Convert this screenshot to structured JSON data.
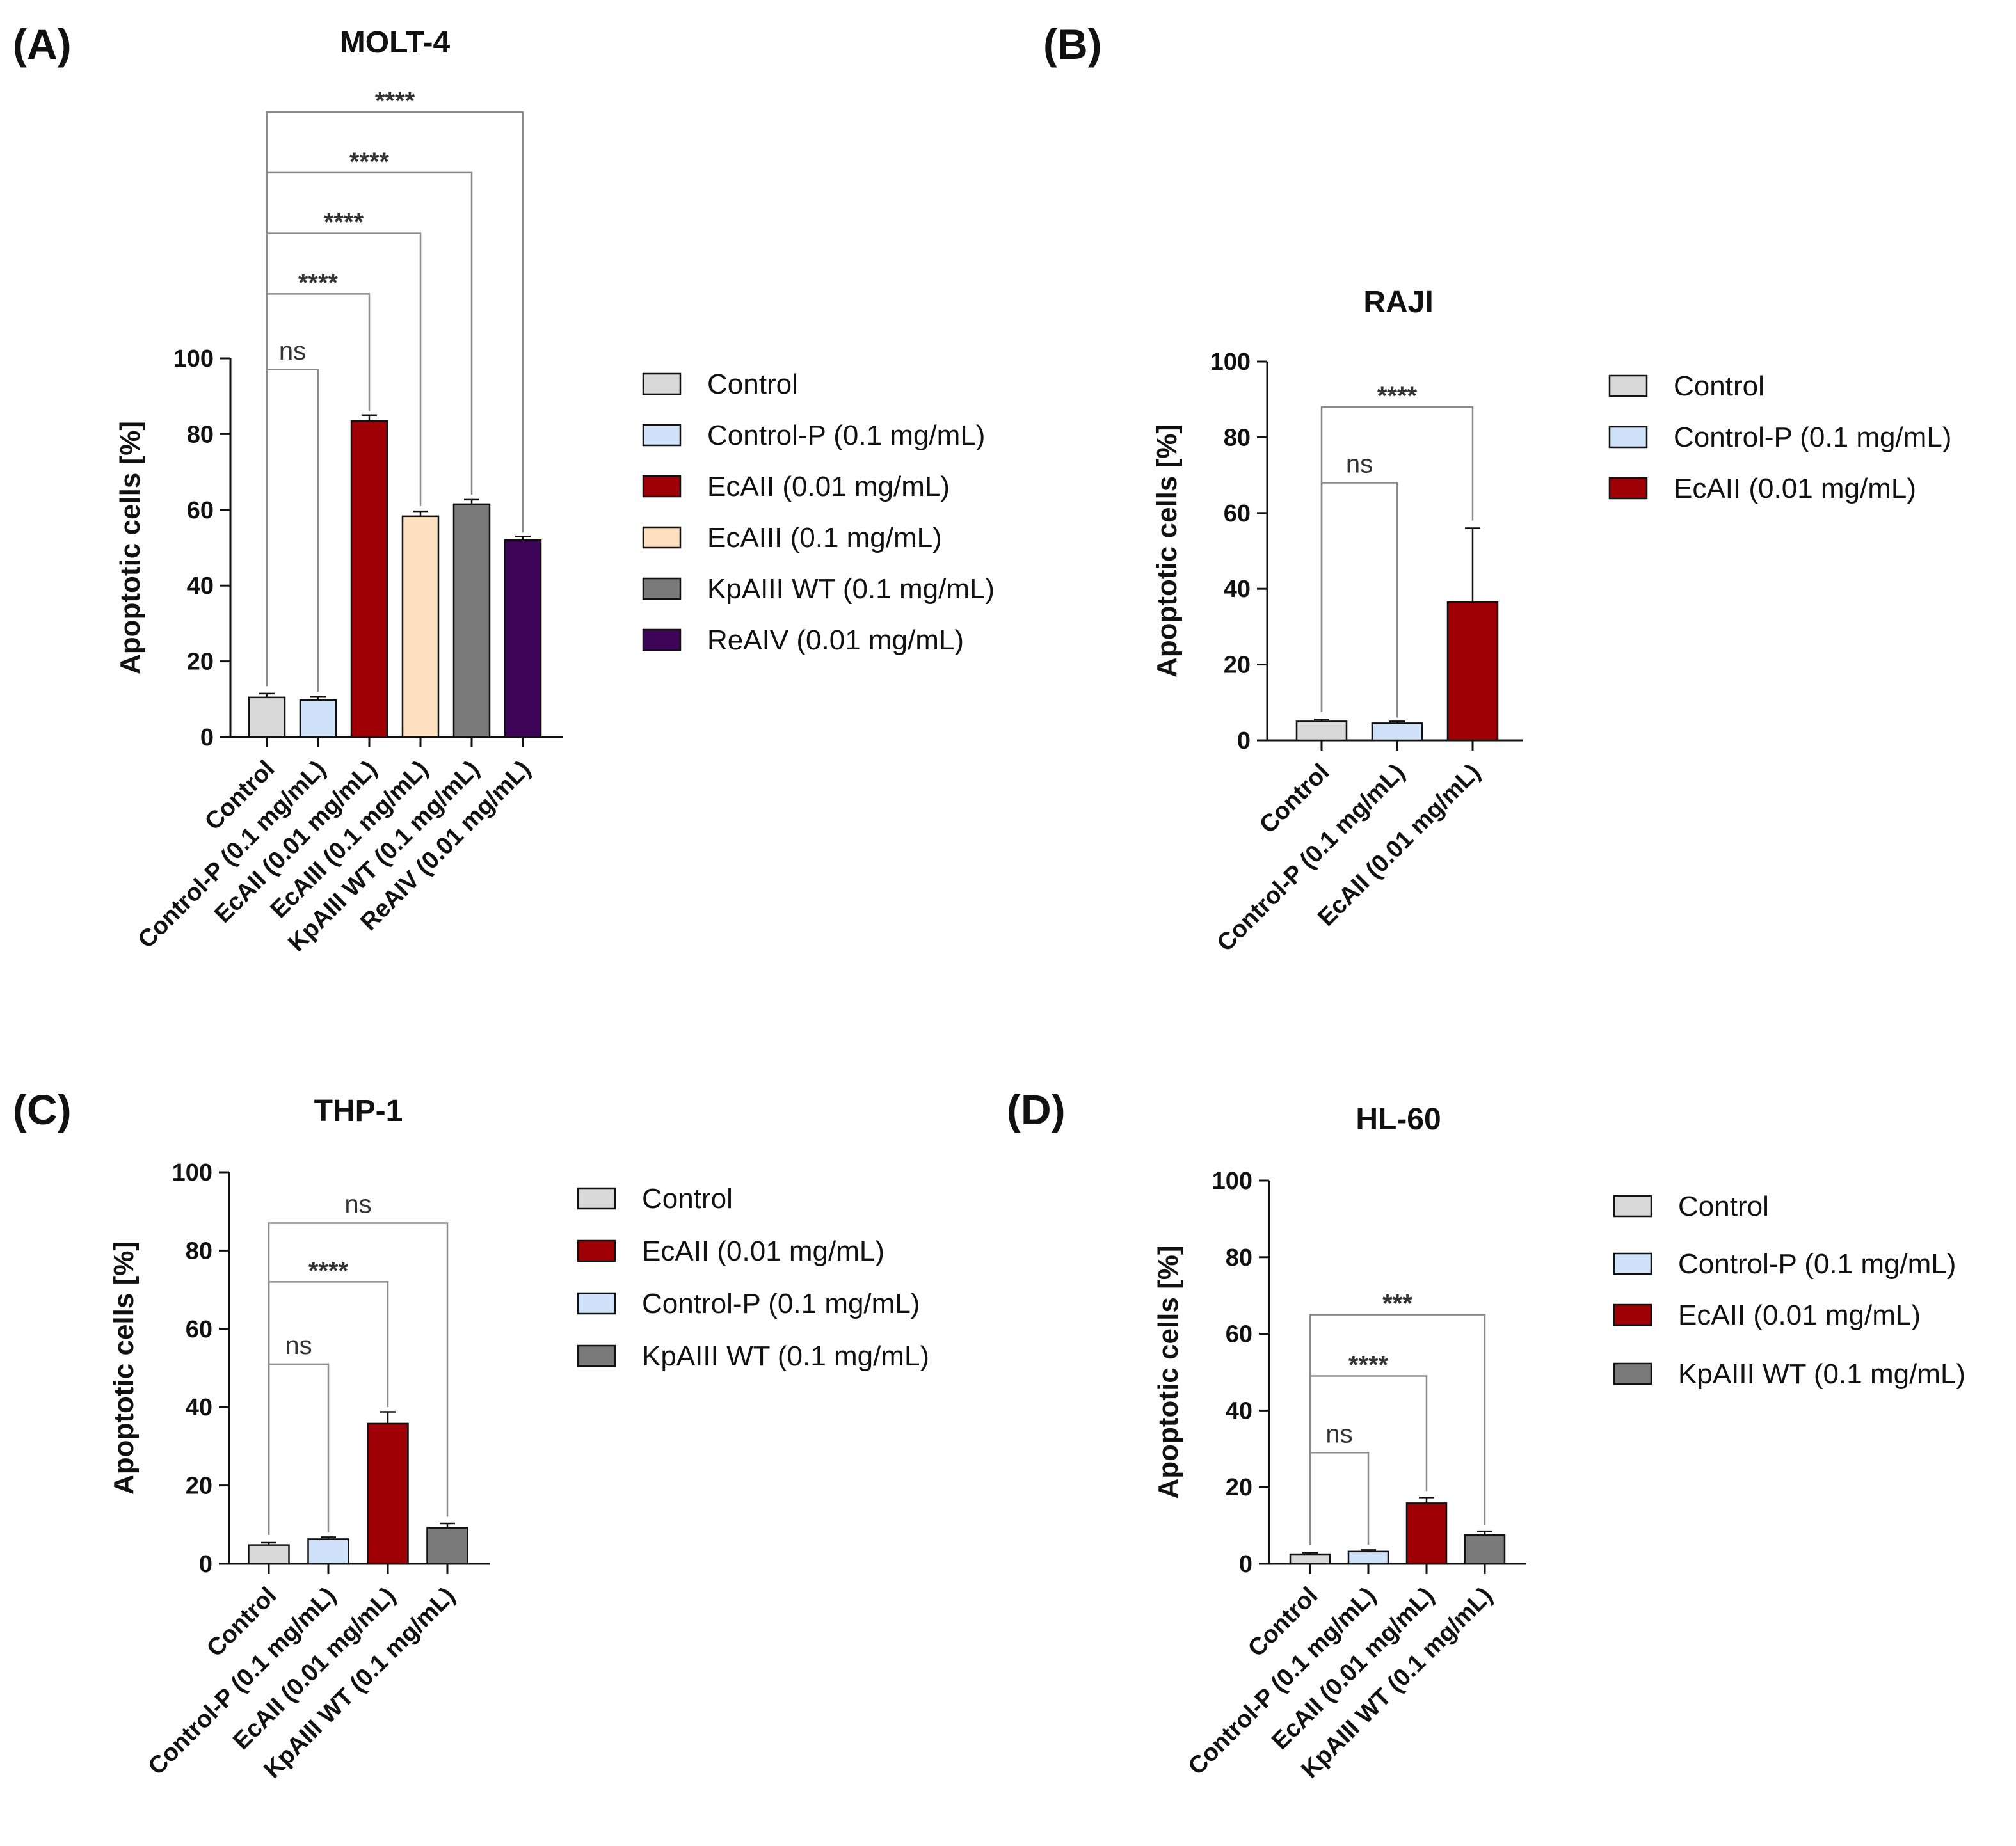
{
  "colors": {
    "Control": "#d9d9d9",
    "Control-P (0.1 mg/mL)": "#cfe2f9",
    "EcAII (0.01 mg/mL)": "#9e0006",
    "EcAIII (0.1 mg/mL)": "#fde0c0",
    "KpAIII WT (0.1 mg/mL)": "#7a7a7a",
    "ReAIV (0.01 mg/mL)": "#3d0457"
  },
  "chart_data": [
    {
      "id": "A",
      "panel_label": "(A)",
      "type": "bar",
      "title": "MOLT-4",
      "ylabel": "Apoptotic cells [%]",
      "ylim": [
        0,
        100
      ],
      "yticks": [
        "0",
        "20",
        "40",
        "60",
        "80",
        "100"
      ],
      "categories": [
        "Control",
        "Control-P (0.1 mg/mL)",
        "EcAII (0.01 mg/mL)",
        "EcAIII (0.1 mg/mL)",
        "KpAIII WT (0.1 mg/mL)",
        "ReAIV (0.01 mg/mL)"
      ],
      "values": [
        10.5,
        9.8,
        83.5,
        58.3,
        61.5,
        52.0
      ],
      "errors": [
        1.0,
        0.8,
        1.5,
        1.3,
        1.2,
        1.0
      ],
      "legend": [
        "Control",
        "Control-P (0.1 mg/mL)",
        "EcAII (0.01 mg/mL)",
        "EcAIII (0.1 mg/mL)",
        "KpAIII WT (0.1 mg/mL)",
        "ReAIV (0.01 mg/mL)"
      ],
      "comparisons": [
        {
          "from": 0,
          "to": 1,
          "label": "ns",
          "level": 97,
          "end": 12
        },
        {
          "from": 0,
          "to": 2,
          "label": "****",
          "level": 117,
          "end": 86
        },
        {
          "from": 0,
          "to": 3,
          "label": "****",
          "level": 133,
          "end": 61
        },
        {
          "from": 0,
          "to": 4,
          "label": "****",
          "level": 149,
          "end": 64
        },
        {
          "from": 0,
          "to": 5,
          "label": "****",
          "level": 165,
          "end": 54
        }
      ]
    },
    {
      "id": "B",
      "panel_label": "(B)",
      "type": "bar",
      "title": "RAJI",
      "ylabel": "Apoptotic cells [%]",
      "ylim": [
        0,
        100
      ],
      "yticks": [
        "0",
        "20",
        "40",
        "60",
        "80",
        "100"
      ],
      "categories": [
        "Control",
        "Control-P (0.1 mg/mL)",
        "EcAII (0.01 mg/mL)"
      ],
      "values": [
        5.0,
        4.5,
        36.5
      ],
      "errors": [
        0.5,
        0.5,
        19.5
      ],
      "legend": [
        "Control",
        "Control-P (0.1 mg/mL)",
        "EcAII (0.01 mg/mL)"
      ],
      "comparisons": [
        {
          "from": 0,
          "to": 1,
          "label": "ns",
          "level": 68,
          "end": 6
        },
        {
          "from": 0,
          "to": 2,
          "label": "****",
          "level": 88,
          "end": 58
        }
      ]
    },
    {
      "id": "C",
      "panel_label": "(C)",
      "type": "bar",
      "title": "THP-1",
      "ylabel": "Apoptotic cells [%]",
      "ylim": [
        0,
        100
      ],
      "yticks": [
        "0",
        "20",
        "40",
        "60",
        "80",
        "100"
      ],
      "categories": [
        "Control",
        "Control-P (0.1 mg/mL)",
        "EcAII (0.01 mg/mL)",
        "KpAIII WT (0.1 mg/mL)"
      ],
      "values": [
        4.8,
        6.3,
        35.8,
        9.2
      ],
      "errors": [
        0.6,
        0.5,
        3.0,
        1.1
      ],
      "legend": [
        "Control",
        "EcAII (0.01 mg/mL)",
        "Control-P (0.1 mg/mL)",
        "KpAIII WT (0.1 mg/mL)"
      ],
      "comparisons": [
        {
          "from": 0,
          "to": 1,
          "label": "ns",
          "level": 51,
          "end": 8
        },
        {
          "from": 0,
          "to": 2,
          "label": "****",
          "level": 72,
          "end": 40
        },
        {
          "from": 0,
          "to": 3,
          "label": "ns",
          "level": 87,
          "end": 12
        }
      ]
    },
    {
      "id": "D",
      "panel_label": "(D)",
      "type": "bar",
      "title": "HL-60",
      "ylabel": "Apoptotic cells [%]",
      "ylim": [
        0,
        100
      ],
      "yticks": [
        "0",
        "20",
        "40",
        "60",
        "80",
        "100"
      ],
      "categories": [
        "Control",
        "Control-P (0.1 mg/mL)",
        "EcAII (0.01 mg/mL)",
        "KpAIII WT (0.1 mg/mL)"
      ],
      "values": [
        2.5,
        3.2,
        15.8,
        7.5
      ],
      "errors": [
        0.4,
        0.4,
        1.5,
        1.0
      ],
      "legend": [
        "Control",
        "Control-P (0.1 mg/mL)",
        "EcAII (0.01 mg/mL)",
        "KpAIII WT (0.1 mg/mL)"
      ],
      "comparisons": [
        {
          "from": 0,
          "to": 1,
          "label": "ns",
          "level": 29,
          "end": 5
        },
        {
          "from": 0,
          "to": 2,
          "label": "****",
          "level": 49,
          "end": 19
        },
        {
          "from": 0,
          "to": 3,
          "label": "***",
          "level": 65,
          "end": 10
        }
      ]
    }
  ]
}
